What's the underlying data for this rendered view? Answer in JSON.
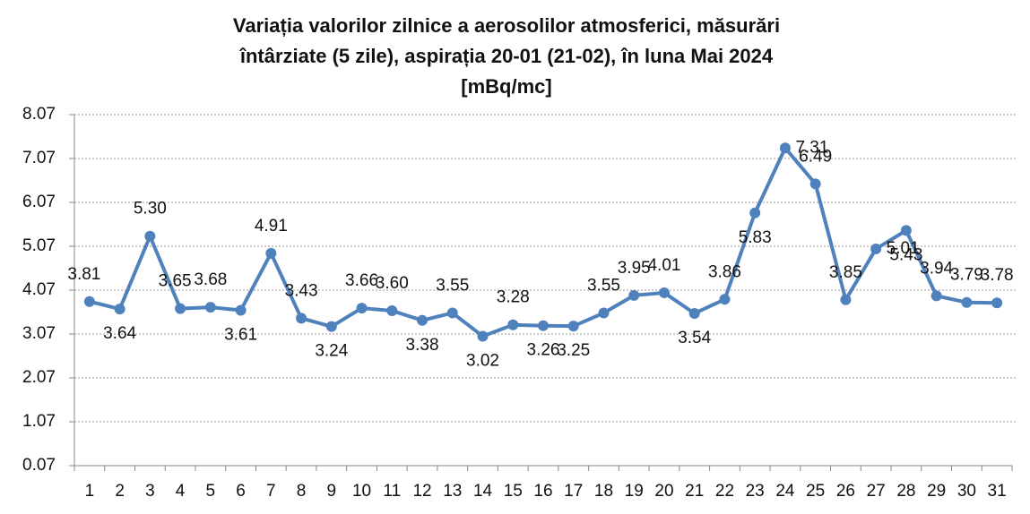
{
  "chart_data": {
    "type": "line",
    "title": [
      "Variația valorilor zilnice a aerosolilor atmosferici, măsurări",
      "întârziate (5 zile), aspirația 20-01 (21-02),  în luna Mai 2024",
      "[mBq/mc]"
    ],
    "categories": [
      "1",
      "2",
      "3",
      "4",
      "5",
      "6",
      "7",
      "8",
      "9",
      "10",
      "11",
      "12",
      "13",
      "14",
      "15",
      "16",
      "17",
      "18",
      "19",
      "20",
      "21",
      "22",
      "23",
      "24",
      "25",
      "26",
      "27",
      "28",
      "29",
      "30",
      "31"
    ],
    "values": [
      3.81,
      3.64,
      5.3,
      3.65,
      3.68,
      3.61,
      4.91,
      3.43,
      3.24,
      3.66,
      3.6,
      3.38,
      3.55,
      3.02,
      3.28,
      3.26,
      3.25,
      3.55,
      3.95,
      4.01,
      3.54,
      3.86,
      5.83,
      7.31,
      6.49,
      3.85,
      5.01,
      5.43,
      3.94,
      3.79,
      3.78
    ],
    "value_labels": [
      "3.81",
      "3.64",
      "5.30",
      "3.65",
      "3.68",
      "3.61",
      "4.91",
      "3.43",
      "3.24",
      "3.66",
      "3.60",
      "3.38",
      "3.55",
      "3.02",
      "3.28",
      "3.26",
      "3.25",
      "3.55",
      "3.95",
      "4.01",
      "3.54",
      "3.86",
      "5.83",
      "7.31",
      "6.49",
      "3.85",
      "5.01",
      "5.43",
      "3.94",
      "3.79",
      "3.78"
    ],
    "color": "#4f81bd",
    "ylim": [
      0.07,
      8.07
    ],
    "yticks": [
      0.07,
      1.07,
      2.07,
      3.07,
      4.07,
      5.07,
      6.07,
      7.07,
      8.07
    ],
    "grid": true
  }
}
